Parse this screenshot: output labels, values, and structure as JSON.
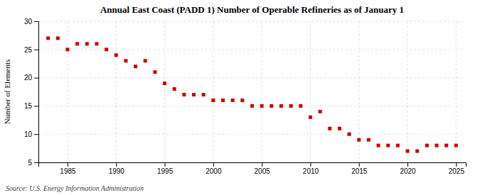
{
  "chart_data": {
    "type": "scatter",
    "title": "Annual East Coast (PADD 1) Number of Operable Refineries as of January 1",
    "ylabel": "Number of Elements",
    "source": "Source: U.S. Energy Information Administration",
    "x": [
      1983,
      1984,
      1985,
      1986,
      1987,
      1988,
      1989,
      1990,
      1991,
      1992,
      1993,
      1994,
      1995,
      1996,
      1997,
      1998,
      1999,
      2000,
      2001,
      2002,
      2003,
      2004,
      2005,
      2006,
      2007,
      2008,
      2009,
      2010,
      2011,
      2012,
      2013,
      2014,
      2015,
      2016,
      2017,
      2018,
      2019,
      2020,
      2021,
      2022,
      2023,
      2024,
      2025
    ],
    "values": [
      27,
      27,
      25,
      26,
      26,
      26,
      25,
      24,
      23,
      22,
      23,
      21,
      19,
      18,
      17,
      17,
      17,
      16,
      16,
      16,
      16,
      15,
      15,
      15,
      15,
      15,
      15,
      13,
      14,
      11,
      11,
      10,
      9,
      9,
      8,
      8,
      8,
      7,
      7,
      8,
      8,
      8,
      8
    ],
    "xlim": [
      1982,
      2026
    ],
    "ylim": [
      5,
      30
    ],
    "xticks": [
      1985,
      1990,
      1995,
      2000,
      2005,
      2010,
      2015,
      2020,
      2025
    ],
    "yticks": [
      5,
      10,
      15,
      20,
      25,
      30
    ],
    "color": "#cc0000",
    "marker": "square",
    "grid": true
  }
}
